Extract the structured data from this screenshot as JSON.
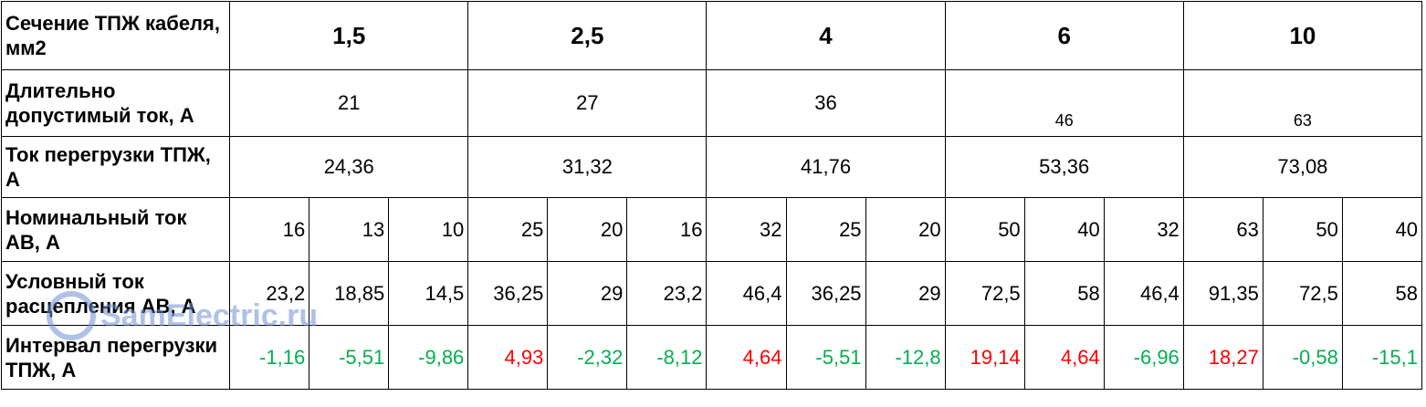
{
  "table": {
    "header": {
      "label": "Сечение ТПЖ кабеля, мм2",
      "sections": [
        "1,5",
        "2,5",
        "4",
        "6",
        "10"
      ]
    },
    "rows": [
      {
        "label": "Длительно допустимый ток, А",
        "values": [
          "21",
          "27",
          "36",
          "46",
          "63"
        ]
      },
      {
        "label": "Ток перегрузки ТПЖ, А",
        "values": [
          "24,36",
          "31,32",
          "41,76",
          "53,36",
          "73,08"
        ]
      },
      {
        "label": "Номинальный ток АВ, А",
        "values": [
          "16",
          "13",
          "10",
          "25",
          "20",
          "16",
          "32",
          "25",
          "20",
          "50",
          "40",
          "32",
          "63",
          "50",
          "40"
        ]
      },
      {
        "label": "Условный ток расцепления АВ, А",
        "values": [
          "23,2",
          "18,85",
          "14,5",
          "36,25",
          "29",
          "23,2",
          "46,4",
          "36,25",
          "29",
          "72,5",
          "58",
          "46,4",
          "91,35",
          "72,5",
          "58"
        ]
      },
      {
        "label": "Интервал перегрузки ТПЖ, А",
        "values": [
          "-1,16",
          "-5,51",
          "-9,86",
          "4,93",
          "-2,32",
          "-8,12",
          "4,64",
          "-5,51",
          "-12,8",
          "19,14",
          "4,64",
          "-6,96",
          "18,27",
          "-0,58",
          "-15,1"
        ]
      }
    ]
  },
  "watermark": "SamElectric.ru"
}
